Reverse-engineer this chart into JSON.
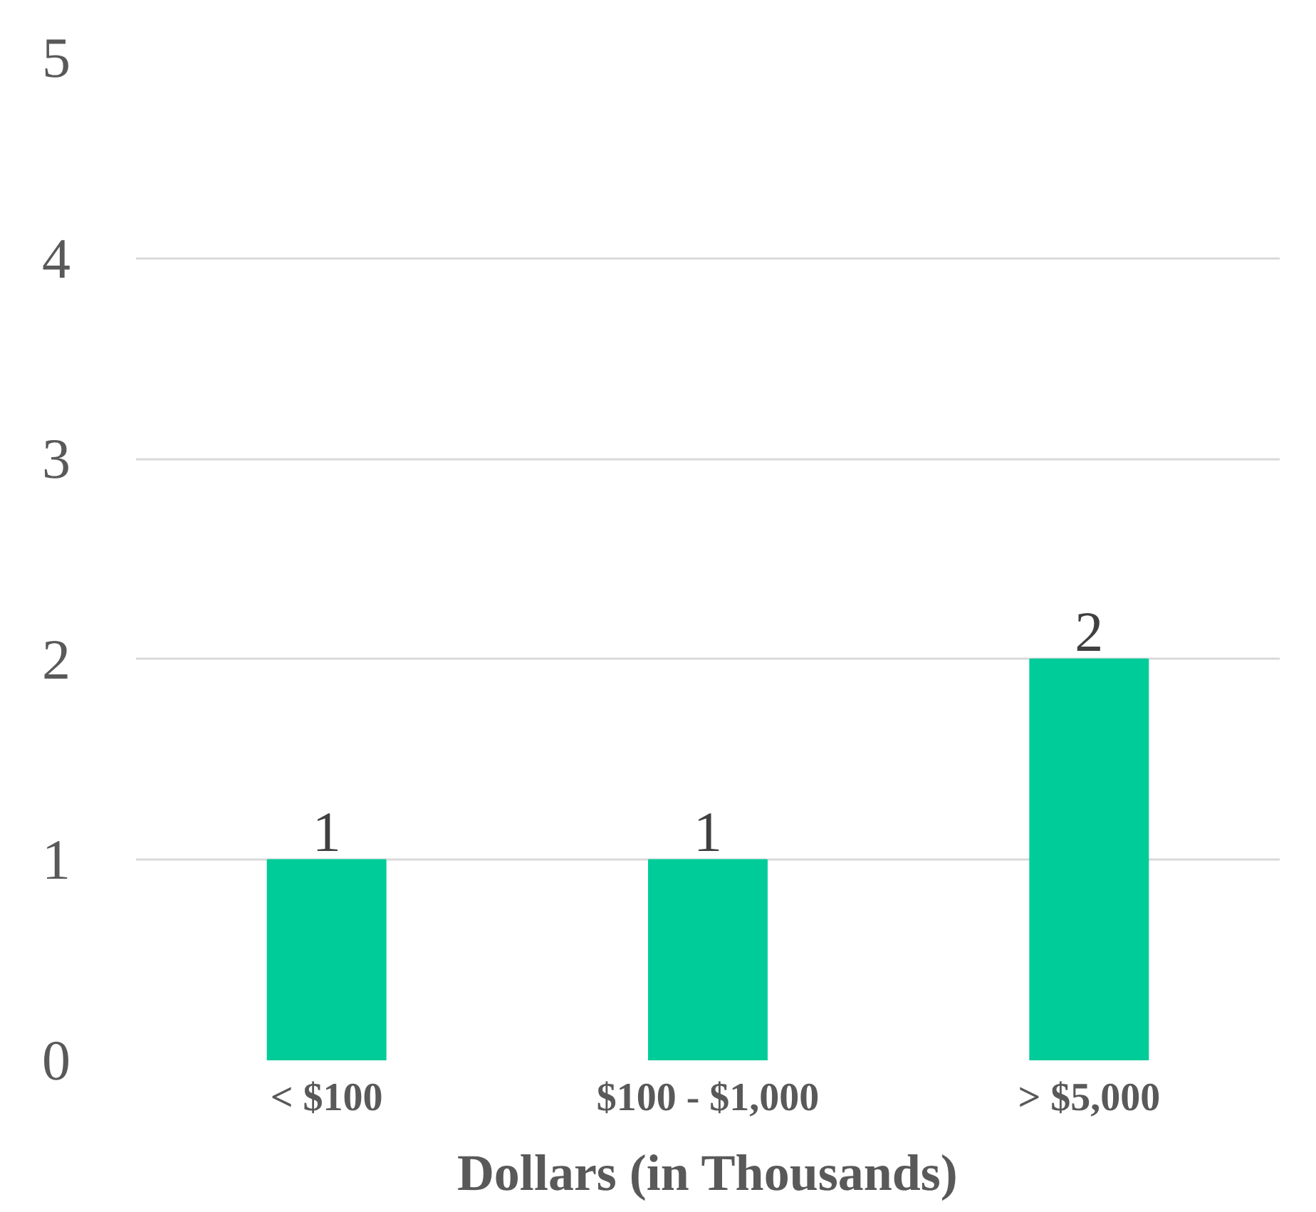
{
  "chart_data": {
    "type": "bar",
    "xlabel": "Dollars (in Thousands)",
    "categories": [
      "< $100",
      "$100 - $1,000",
      "> $5,000"
    ],
    "values": [
      1,
      1,
      2
    ],
    "color": "#00cc99",
    "ylim": [
      0,
      5
    ],
    "yticks": [
      0,
      1,
      2,
      3,
      4,
      5
    ],
    "grid": "y",
    "data_labels": true
  }
}
